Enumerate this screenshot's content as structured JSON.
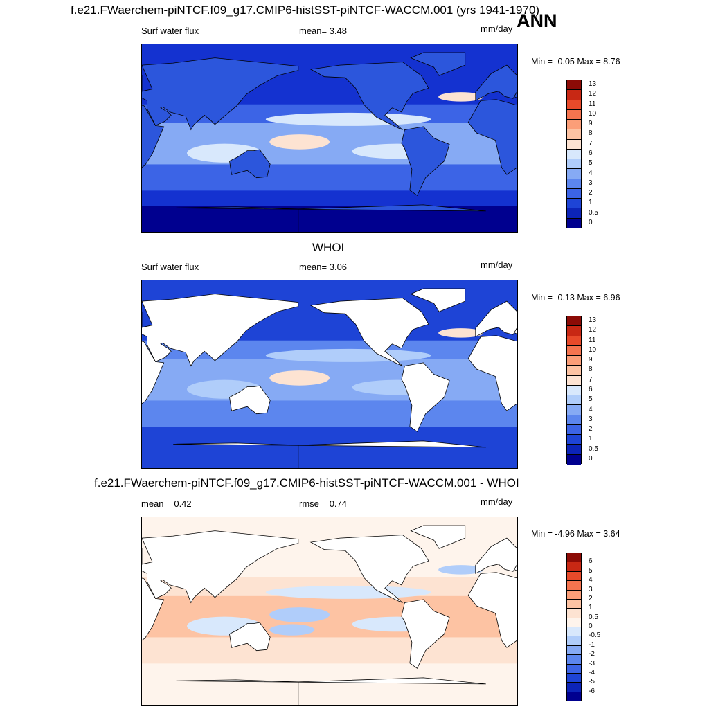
{
  "figure": {
    "title": "f.e21.FWaerchem-piNTCF.f09_g17.CMIP6-histSST-piNTCF-WACCM.001 (yrs 1941-1970)",
    "season": "ANN"
  },
  "panels": [
    {
      "id": "model",
      "heading": "",
      "left_label": "Surf water flux",
      "center_label": "mean=   3.48",
      "units": "mm/day",
      "minmax": "Min =  -0.05 Max =   8.76",
      "colorbar": {
        "levels": [
          "0",
          "0.5",
          "1",
          "2",
          "3",
          "4",
          "5",
          "6",
          "7",
          "8",
          "9",
          "10",
          "11",
          "12",
          "13"
        ],
        "colors": [
          "#00008f",
          "#0c24b8",
          "#1e44d6",
          "#3c64e6",
          "#5c86ee",
          "#86aaf4",
          "#b0cdfa",
          "#d8e8fc",
          "#fde3d2",
          "#fdc3a3",
          "#fb9e78",
          "#f5744f",
          "#e84a2a",
          "#c82814",
          "#8c0b06"
        ]
      },
      "map": {
        "ocean_colors": [
          "#1432d0",
          "#3c64e6",
          "#86aaf4",
          "#d8e8fc",
          "#fde3d2"
        ],
        "land_color": "#2c56dc"
      }
    },
    {
      "id": "obs",
      "heading": "WHOI",
      "left_label": "Surf water flux",
      "center_label": "mean=   3.06",
      "units": "mm/day",
      "minmax": "Min =  -0.13 Max =   6.96",
      "colorbar": {
        "levels": [
          "0",
          "0.5",
          "1",
          "2",
          "3",
          "4",
          "5",
          "6",
          "7",
          "8",
          "9",
          "10",
          "11",
          "12",
          "13"
        ],
        "colors": [
          "#00008f",
          "#0c24b8",
          "#1e44d6",
          "#3c64e6",
          "#5c86ee",
          "#86aaf4",
          "#b0cdfa",
          "#d8e8fc",
          "#fde3d2",
          "#fdc3a3",
          "#fb9e78",
          "#f5744f",
          "#e84a2a",
          "#c82814",
          "#8c0b06"
        ]
      },
      "map": {
        "ocean_colors": [
          "#1e44d6",
          "#5c86ee",
          "#86aaf4",
          "#b0cdfa",
          "#fde3d2"
        ],
        "land_color": "#ffffff"
      }
    },
    {
      "id": "diff",
      "heading": "f.e21.FWaerchem-piNTCF.f09_g17.CMIP6-histSST-piNTCF-WACCM.001 - WHOI",
      "left_label": "mean =   0.42",
      "center_label": "rmse =   0.74",
      "units": "mm/day",
      "minmax": "Min =  -4.96 Max =   3.64",
      "colorbar": {
        "levels": [
          "-6",
          "-5",
          "-4",
          "-3",
          "-2",
          "-1",
          "-0.5",
          "0",
          "0.5",
          "1",
          "2",
          "3",
          "4",
          "5",
          "6"
        ],
        "colors": [
          "#00008f",
          "#0c24b8",
          "#1e44d6",
          "#3c64e6",
          "#5c86ee",
          "#86aaf4",
          "#b0cdfa",
          "#d8e8fc",
          "#fef4ec",
          "#fde3d2",
          "#fdc3a3",
          "#fb9e78",
          "#f5744f",
          "#e84a2a",
          "#c82814",
          "#8c0b06"
        ]
      },
      "map": {
        "ocean_colors": [
          "#fef4ec",
          "#fde3d2",
          "#fdc3a3",
          "#d8e8fc",
          "#b0cdfa"
        ],
        "land_color": "#ffffff"
      }
    }
  ]
}
